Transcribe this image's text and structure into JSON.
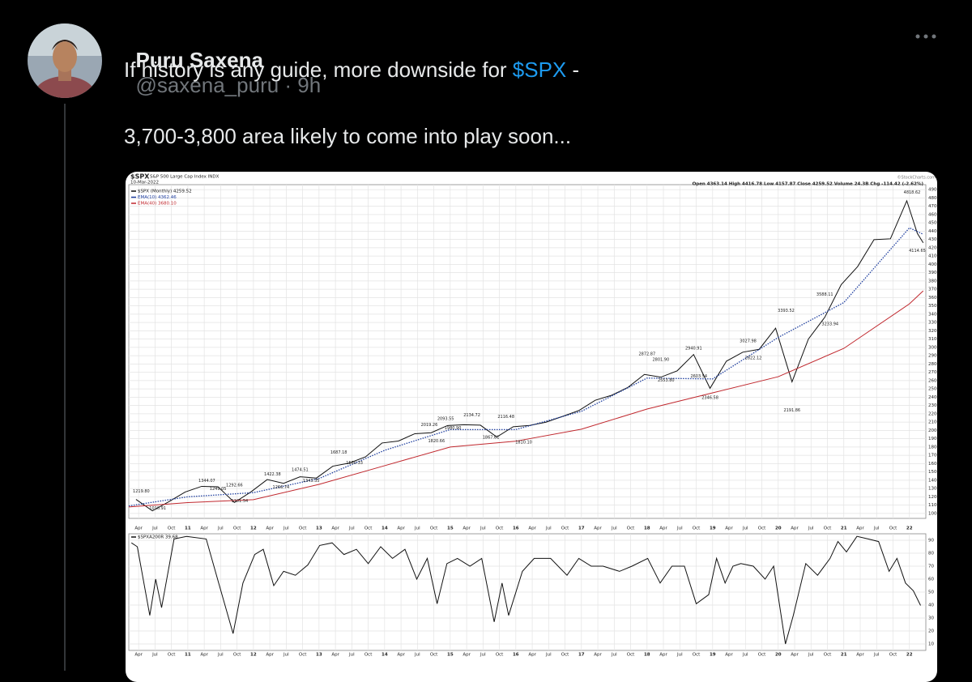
{
  "tweet": {
    "name": "Puru Saxena",
    "handle_time": "@saxena_puru · 9h",
    "text_line1": [
      "If history is any guide, more downside for ",
      "$SPX",
      " -"
    ],
    "text_line2": "3,700-3,800 area likely to come into play soon..."
  },
  "chart_data": [
    {
      "type": "line",
      "symbol": "$SPX",
      "title": "S&P 500 Large Cap Index INDX",
      "date": "10-Mar-2022",
      "quote": "Open 4363.14  High 4416.78  Low 4157.87  Close 4259.52  Volume 24.3B  Chg -114.42 (-2.62%)",
      "source": "©StockCharts.com",
      "grid": true,
      "legend": "upper left",
      "xlim": [
        2010.1,
        2022.25
      ],
      "ylim": [
        940,
        4960
      ],
      "yticks": [
        1000,
        1100,
        1200,
        1300,
        1400,
        1500,
        1600,
        1700,
        1800,
        1900,
        2000,
        2100,
        2200,
        2300,
        2400,
        2500,
        2600,
        2700,
        2800,
        2900,
        3000,
        3100,
        3200,
        3300,
        3400,
        3500,
        3600,
        3700,
        3800,
        3900,
        4000,
        4100,
        4200,
        4300,
        4400,
        4500,
        4600,
        4700,
        4800,
        4900
      ],
      "xticks": [
        {
          "value": 2010.25,
          "label": "Apr"
        },
        {
          "value": 2010.5,
          "label": "Jul"
        },
        {
          "value": 2010.75,
          "label": "Oct"
        },
        {
          "value": 2011,
          "label": "11"
        },
        {
          "value": 2011.25,
          "label": "Apr"
        },
        {
          "value": 2011.5,
          "label": "Jul"
        },
        {
          "value": 2011.75,
          "label": "Oct"
        },
        {
          "value": 2012,
          "label": "12"
        },
        {
          "value": 2012.25,
          "label": "Apr"
        },
        {
          "value": 2012.5,
          "label": "Jul"
        },
        {
          "value": 2012.75,
          "label": "Oct"
        },
        {
          "value": 2013,
          "label": "13"
        },
        {
          "value": 2013.25,
          "label": "Apr"
        },
        {
          "value": 2013.5,
          "label": "Jul"
        },
        {
          "value": 2013.75,
          "label": "Oct"
        },
        {
          "value": 2014,
          "label": "14"
        },
        {
          "value": 2014.25,
          "label": "Apr"
        },
        {
          "value": 2014.5,
          "label": "Jul"
        },
        {
          "value": 2014.75,
          "label": "Oct"
        },
        {
          "value": 2015,
          "label": "15"
        },
        {
          "value": 2015.25,
          "label": "Apr"
        },
        {
          "value": 2015.5,
          "label": "Jul"
        },
        {
          "value": 2015.75,
          "label": "Oct"
        },
        {
          "value": 2016,
          "label": "16"
        },
        {
          "value": 2016.25,
          "label": "Apr"
        },
        {
          "value": 2016.5,
          "label": "Jul"
        },
        {
          "value": 2016.75,
          "label": "Oct"
        },
        {
          "value": 2017,
          "label": "17"
        },
        {
          "value": 2017.25,
          "label": "Apr"
        },
        {
          "value": 2017.5,
          "label": "Jul"
        },
        {
          "value": 2017.75,
          "label": "Oct"
        },
        {
          "value": 2018,
          "label": "18"
        },
        {
          "value": 2018.25,
          "label": "Apr"
        },
        {
          "value": 2018.5,
          "label": "Jul"
        },
        {
          "value": 2018.75,
          "label": "Oct"
        },
        {
          "value": 2019,
          "label": "19"
        },
        {
          "value": 2019.25,
          "label": "Apr"
        },
        {
          "value": 2019.5,
          "label": "Jul"
        },
        {
          "value": 2019.75,
          "label": "Oct"
        },
        {
          "value": 2020,
          "label": "20"
        },
        {
          "value": 2020.25,
          "label": "Apr"
        },
        {
          "value": 2020.5,
          "label": "Jul"
        },
        {
          "value": 2020.75,
          "label": "Oct"
        },
        {
          "value": 2021,
          "label": "21"
        },
        {
          "value": 2021.25,
          "label": "Apr"
        },
        {
          "value": 2021.5,
          "label": "Jul"
        },
        {
          "value": 2021.75,
          "label": "Oct"
        },
        {
          "value": 2022,
          "label": "22"
        }
      ],
      "series": [
        {
          "name": "$SPX (Monthly) 4259.52",
          "color": "#111111",
          "x": [
            2010.21,
            2010.46,
            2010.71,
            2010.96,
            2011.21,
            2011.46,
            2011.71,
            2011.96,
            2012.21,
            2012.46,
            2012.71,
            2012.96,
            2013.21,
            2013.46,
            2013.71,
            2013.96,
            2014.21,
            2014.46,
            2014.71,
            2014.96,
            2015.21,
            2015.46,
            2015.71,
            2015.96,
            2016.21,
            2016.46,
            2016.71,
            2016.96,
            2017.21,
            2017.46,
            2017.71,
            2017.96,
            2018.21,
            2018.46,
            2018.71,
            2018.96,
            2019.21,
            2019.46,
            2019.71,
            2019.96,
            2020.21,
            2020.46,
            2020.71,
            2020.96,
            2021.21,
            2021.46,
            2021.71,
            2021.96,
            2022.12,
            2022.21
          ],
          "values": [
            1169,
            1031,
            1141,
            1258,
            1326,
            1321,
            1131,
            1258,
            1408,
            1362,
            1441,
            1426,
            1569,
            1606,
            1682,
            1848,
            1872,
            1960,
            1972,
            2059,
            2068,
            2063,
            1920,
            2044,
            2060,
            2099,
            2168,
            2239,
            2363,
            2423,
            2519,
            2674,
            2641,
            2718,
            2914,
            2507,
            2834,
            2942,
            2977,
            3231,
            2585,
            3100,
            3363,
            3756,
            3973,
            4298,
            4308,
            4766,
            4374,
            4259.52
          ]
        },
        {
          "name": "EMA(10) 4362.46",
          "color": "#1f3f9f",
          "style": "dotted",
          "x": [
            2010.1,
            2011,
            2012,
            2013,
            2014,
            2015,
            2016,
            2017,
            2018,
            2019,
            2020,
            2021,
            2022,
            2022.21
          ],
          "values": [
            1090,
            1200,
            1250,
            1420,
            1760,
            2010,
            2010,
            2230,
            2630,
            2620,
            3120,
            3540,
            4440,
            4362.46
          ]
        },
        {
          "name": "EMA(40) 3680.10",
          "color": "#c0272d",
          "x": [
            2010.1,
            2011,
            2012,
            2013,
            2014,
            2015,
            2016,
            2017,
            2018,
            2019,
            2020,
            2021,
            2022,
            2022.21
          ],
          "values": [
            1078,
            1130,
            1166,
            1350,
            1575,
            1800,
            1870,
            2015,
            2257,
            2452,
            2647,
            2988,
            3524,
            3680.1
          ]
        }
      ],
      "annotations": [
        {
          "label": "1219.80",
          "x": 2010.29,
          "value": 1219.8
        },
        {
          "label": "1010.91",
          "x": 2010.54,
          "value": 1010.91
        },
        {
          "label": "1344.07",
          "x": 2011.29,
          "value": 1344.07
        },
        {
          "label": "1249.05",
          "x": 2011.46,
          "value": 1249.05
        },
        {
          "label": "1292.66",
          "x": 2011.71,
          "value": 1292.66
        },
        {
          "label": "1101.54",
          "x": 2011.79,
          "value": 1101.54
        },
        {
          "label": "1422.38",
          "x": 2012.29,
          "value": 1422.38
        },
        {
          "label": "1266.74",
          "x": 2012.42,
          "value": 1266.74
        },
        {
          "label": "1474.51",
          "x": 2012.71,
          "value": 1474.51
        },
        {
          "label": "1343.35",
          "x": 2012.88,
          "value": 1343.35
        },
        {
          "label": "1560.33",
          "x": 2013.54,
          "value": 1560.33
        },
        {
          "label": "1687.18",
          "x": 2013.3,
          "value": 1687.18
        },
        {
          "label": "2019.26",
          "x": 2014.68,
          "value": 2019.26
        },
        {
          "label": "1820.66",
          "x": 2014.79,
          "value": 1820.66
        },
        {
          "label": "2093.55",
          "x": 2014.93,
          "value": 2093.55
        },
        {
          "label": "1980.90",
          "x": 2015.04,
          "value": 1980.9
        },
        {
          "label": "2134.72",
          "x": 2015.33,
          "value": 2134.72
        },
        {
          "label": "1867.61",
          "x": 2015.62,
          "value": 1867.61
        },
        {
          "label": "2116.48",
          "x": 2015.85,
          "value": 2116.48
        },
        {
          "label": "1810.10",
          "x": 2016.12,
          "value": 1810.1
        },
        {
          "label": "2872.87",
          "x": 2018.0,
          "value": 2872.87
        },
        {
          "label": "2801.90",
          "x": 2018.21,
          "value": 2801.9
        },
        {
          "label": "2553.80",
          "x": 2018.29,
          "value": 2553.8
        },
        {
          "label": "2940.91",
          "x": 2018.71,
          "value": 2940.91
        },
        {
          "label": "2603.54",
          "x": 2018.79,
          "value": 2603.54
        },
        {
          "label": "2346.58",
          "x": 2018.96,
          "value": 2346.58
        },
        {
          "label": "3027.98",
          "x": 2019.54,
          "value": 3027.98
        },
        {
          "label": "2822.12",
          "x": 2019.62,
          "value": 2822.12
        },
        {
          "label": "3393.52",
          "x": 2020.12,
          "value": 3393.52
        },
        {
          "label": "2191.86",
          "x": 2020.21,
          "value": 2191.86
        },
        {
          "label": "3588.11",
          "x": 2020.71,
          "value": 3588.11
        },
        {
          "label": "3233.94",
          "x": 2020.79,
          "value": 3233.94
        },
        {
          "label": "4818.62",
          "x": 2022.04,
          "value": 4818.62
        },
        {
          "label": "4114.65",
          "x": 2022.12,
          "value": 4114.65
        }
      ]
    },
    {
      "type": "line",
      "grid": true,
      "legend": "upper left",
      "xlim": [
        2010.1,
        2022.25
      ],
      "ylim": [
        5,
        95
      ],
      "yticks": [
        10,
        20,
        30,
        40,
        50,
        60,
        70,
        80,
        90
      ],
      "series": [
        {
          "name": "$SPXA200R 39.68",
          "color": "#111111",
          "x": [
            2010.14,
            2010.23,
            2010.42,
            2010.51,
            2010.6,
            2010.79,
            2010.98,
            2011.28,
            2011.47,
            2011.69,
            2011.84,
            2012.02,
            2012.15,
            2012.31,
            2012.46,
            2012.64,
            2012.83,
            2013.01,
            2013.2,
            2013.38,
            2013.57,
            2013.75,
            2013.94,
            2014.12,
            2014.31,
            2014.49,
            2014.65,
            2014.8,
            2014.95,
            2015.11,
            2015.3,
            2015.48,
            2015.67,
            2015.79,
            2015.89,
            2016.1,
            2016.28,
            2016.53,
            2016.78,
            2016.96,
            2017.15,
            2017.33,
            2017.58,
            2017.77,
            2018.01,
            2018.2,
            2018.38,
            2018.57,
            2018.75,
            2018.94,
            2019.06,
            2019.19,
            2019.31,
            2019.43,
            2019.62,
            2019.8,
            2019.93,
            2020.11,
            2020.23,
            2020.42,
            2020.6,
            2020.79,
            2020.91,
            2021.04,
            2021.2,
            2021.37,
            2021.53,
            2021.69,
            2021.81,
            2021.94,
            2022.06,
            2022.17
          ],
          "values": [
            88,
            85,
            32,
            60,
            38,
            91,
            93,
            91,
            57,
            18,
            57,
            79,
            83,
            55,
            66,
            63,
            71,
            86,
            88,
            79,
            83,
            72,
            85,
            76,
            83,
            60,
            76,
            41,
            72,
            76,
            70,
            76,
            27,
            57,
            32,
            66,
            76,
            76,
            63,
            76,
            70,
            70,
            66,
            70,
            76,
            57,
            70,
            70,
            41,
            48,
            76,
            57,
            70,
            72,
            70,
            60,
            70,
            10,
            32,
            72,
            63,
            76,
            89,
            81,
            93,
            91,
            89,
            66,
            76,
            57,
            51,
            39.68
          ]
        }
      ]
    }
  ]
}
